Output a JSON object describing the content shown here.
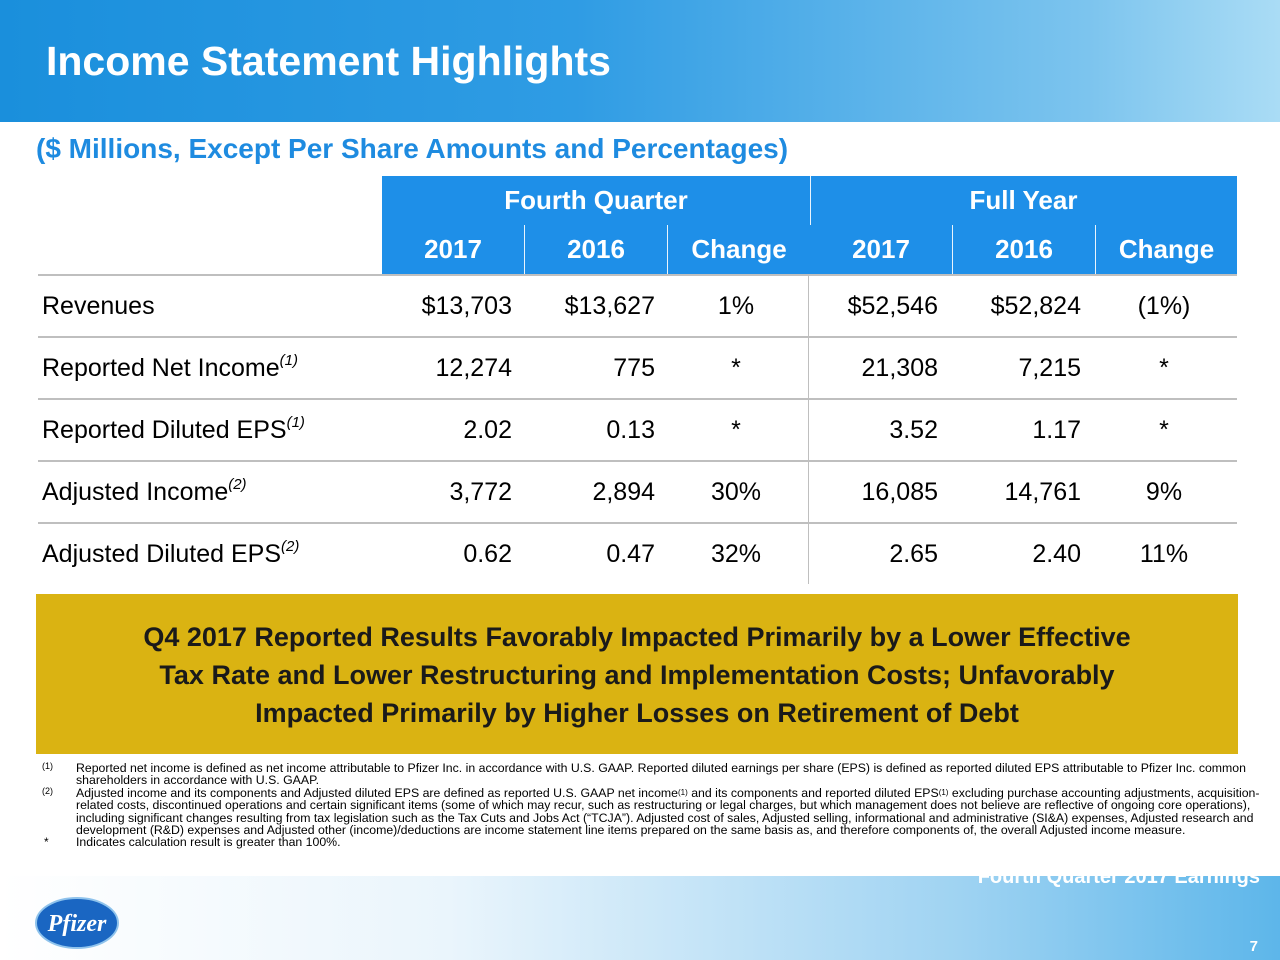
{
  "slide": {
    "title": "Income Statement Highlights",
    "subtitle": "($ Millions, Except Per Share Amounts and Percentages)",
    "footer_title": "Fourth Quarter 2017 Earnings",
    "page_number": "7",
    "logo_text": "Pfizer"
  },
  "table": {
    "group_headers": [
      "Fourth Quarter",
      "Full Year"
    ],
    "col_headers": [
      "2017",
      "2016",
      "Change",
      "2017",
      "2016",
      "Change"
    ],
    "rows": [
      {
        "label": "Revenues",
        "sup": "",
        "values": [
          "$13,703",
          "$13,627",
          "1%",
          "$52,546",
          "$52,824",
          "(1%)"
        ]
      },
      {
        "label": "Reported Net Income",
        "sup": "(1)",
        "values": [
          "12,274",
          "775",
          "*",
          "21,308",
          "7,215",
          "*"
        ]
      },
      {
        "label": "Reported Diluted EPS",
        "sup": "(1)",
        "values": [
          "2.02",
          "0.13",
          "*",
          "3.52",
          "1.17",
          "*"
        ]
      },
      {
        "label": "Adjusted Income",
        "sup": "(2)",
        "values": [
          "3,772",
          "2,894",
          "30%",
          "16,085",
          "14,761",
          "9%"
        ]
      },
      {
        "label": "Adjusted Diluted EPS",
        "sup": "(2)",
        "values": [
          "0.62",
          "0.47",
          "32%",
          "2.65",
          "2.40",
          "11%"
        ]
      }
    ]
  },
  "banner": {
    "line1": "Q4 2017 Reported Results Favorably Impacted Primarily by a Lower Effective",
    "line2": "Tax Rate and Lower Restructuring and Implementation Costs; Unfavorably",
    "line3": "Impacted Primarily by Higher Losses on Retirement of Debt"
  },
  "footnotes": {
    "fn1_marker": "(1)",
    "fn1_text": "Reported net income is defined as net income attributable to Pfizer Inc. in accordance with U.S. GAAP. Reported diluted earnings per share (EPS) is defined as reported diluted EPS attributable to Pfizer Inc. common shareholders in accordance with U.S. GAAP.",
    "fn2_marker": "(2)",
    "fn2_part1": "Adjusted income and its components and Adjusted diluted EPS are defined as reported U.S. GAAP net income",
    "fn2_sup1": "(1)",
    "fn2_part2": " and its components and reported diluted EPS",
    "fn2_sup2": "(1)",
    "fn2_part3": " excluding purchase accounting adjustments, acquisition-related costs, discontinued operations and certain significant items (some of which may recur, such as restructuring or legal charges, but which management does not believe are reflective of ongoing core operations), including significant changes resulting from tax legislation such as the Tax Cuts and Jobs Act (“TCJA”). Adjusted cost of sales, Adjusted selling, informational and administrative (SI&A) expenses, Adjusted research and development (R&D) expenses and Adjusted other (income)/deductions are income statement line items prepared on the same basis as, and therefore components of, the overall Adjusted income measure.",
    "fn3_marker": "*",
    "fn3_text": "Indicates calculation result is greater than 100%."
  }
}
